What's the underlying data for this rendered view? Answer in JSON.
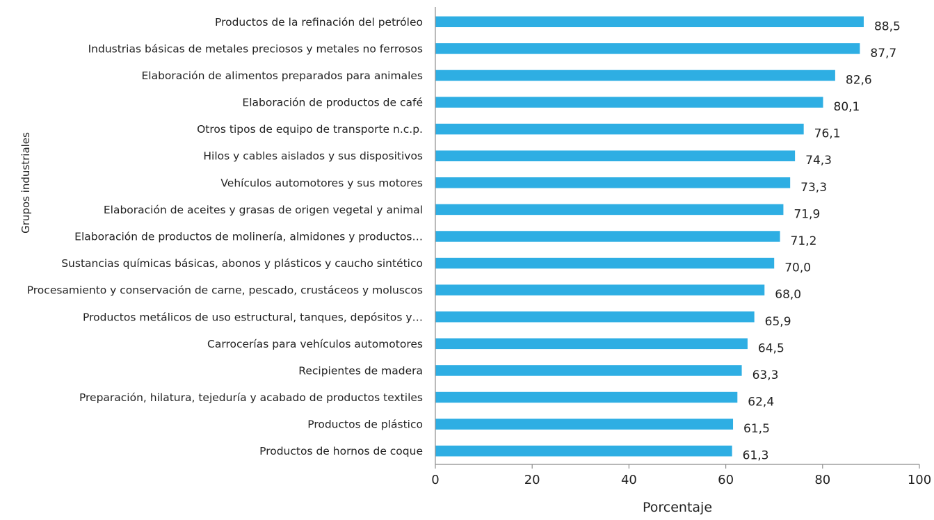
{
  "chart_data": {
    "type": "bar",
    "orientation": "horizontal",
    "categories": [
      "Productos de la refinación del petróleo",
      "Industrias básicas de metales preciosos y metales no ferrosos",
      "Elaboración de alimentos preparados para animales",
      "Elaboración de productos de café",
      "Otros tipos de equipo de transporte n.c.p.",
      "Hilos y cables aislados y sus dispositivos",
      "Vehículos automotores y sus motores",
      "Elaboración de aceites y grasas de origen vegetal y animal",
      "Elaboración de productos de molinería, almidones y productos…",
      "Sustancias químicas básicas, abonos y  plásticos y caucho sintético",
      "Procesamiento y conservación de carne, pescado, crustáceos y moluscos",
      "Productos metálicos de uso estructural, tanques, depósitos y…",
      "Carrocerías para vehículos automotores",
      "Recipientes de madera",
      "Preparación, hilatura, tejeduría y acabado de productos textiles",
      "Productos de plástico",
      "Productos de hornos de coque"
    ],
    "values": [
      88.5,
      87.7,
      82.6,
      80.1,
      76.1,
      74.3,
      73.3,
      71.9,
      71.2,
      70.0,
      68.0,
      65.9,
      64.5,
      63.3,
      62.4,
      61.5,
      61.3
    ],
    "value_labels": [
      "88,5",
      "87,7",
      "82,6",
      "80,1",
      "76,1",
      "74,3",
      "73,3",
      "71,9",
      "71,2",
      "70,0",
      "68,0",
      "65,9",
      "64,5",
      "63,3",
      "62,4",
      "61,5",
      "61,3"
    ],
    "xlabel": "Porcentaje",
    "ylabel": "Grupos industriales",
    "xlim": [
      0,
      100
    ],
    "xticks": [
      "0",
      "20",
      "40",
      "60",
      "80",
      "100"
    ],
    "grid": false,
    "legend": "none",
    "bar_color": "#2eaee3"
  }
}
